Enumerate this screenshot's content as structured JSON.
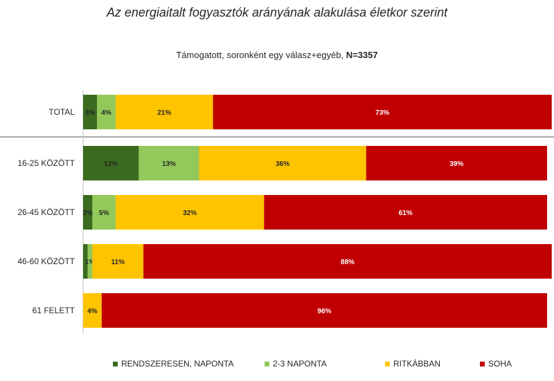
{
  "title": "Az energiaitalt fogyasztók arányának alakulása életkor szerint",
  "subtitle_text": "Támogatott, soronként egy válasz+egyéb,",
  "subtitle_n": "N=3357",
  "chart_data": {
    "type": "bar",
    "orientation": "horizontal",
    "stacked": true,
    "normalized": true,
    "categories": [
      "TOTAL",
      "16-25 KÖZÖTT",
      "26-45 KÖZÖTT",
      "46-60 KÖZÖTT",
      "61 FELETT"
    ],
    "series": [
      {
        "name": "RENDSZERESEN, NAPONTA",
        "color": "#3a6b1e",
        "values": [
          3,
          12,
          2,
          1,
          0
        ],
        "labels": [
          "3%",
          "12%",
          "2%",
          "",
          ""
        ]
      },
      {
        "name": "2-3 NAPONTA",
        "color": "#93c85a",
        "values": [
          4,
          13,
          5,
          1,
          0
        ],
        "labels": [
          "4%",
          "13%",
          "5%",
          "1%",
          ""
        ]
      },
      {
        "name": "RITKÁBBAN",
        "color": "#ffc400",
        "values": [
          21,
          36,
          32,
          11,
          4
        ],
        "labels": [
          "21%",
          "36%",
          "32%",
          "11%",
          "4%"
        ]
      },
      {
        "name": "SOHA",
        "color": "#c00000",
        "values": [
          73,
          39,
          61,
          88,
          96
        ],
        "labels": [
          "73%",
          "39%",
          "61%",
          "88%",
          "96%"
        ]
      }
    ],
    "xlim": [
      0,
      100
    ],
    "grid": false,
    "legend_position": "bottom"
  }
}
